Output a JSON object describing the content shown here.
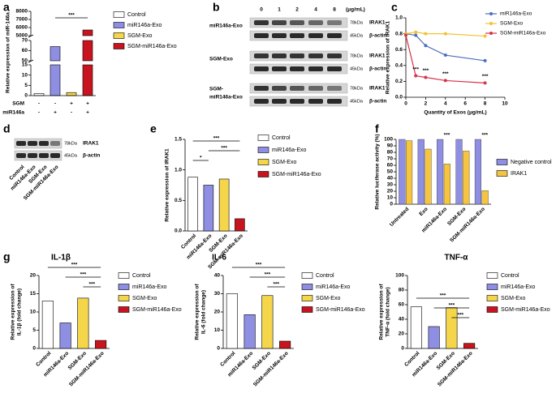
{
  "panel_labels": [
    "a",
    "b",
    "c",
    "d",
    "e",
    "f",
    "g"
  ],
  "blots": {
    "b": {
      "doses": [
        "0",
        "1",
        "2",
        "4",
        "8"
      ],
      "unit": "(μg/mL)",
      "groups": [
        [
          "miR146a-Exo"
        ],
        [
          "SGM-Exo"
        ],
        [
          "SGM-",
          "miR146a-Exo"
        ]
      ],
      "bands": [
        {
          "size": "78kDa",
          "name": "IRAK1"
        },
        {
          "size": "45kDa",
          "name": "β-actin"
        }
      ]
    },
    "d": {
      "bands": [
        {
          "size": "78kDa",
          "name": "IRAK1"
        },
        {
          "size": "45kDa",
          "name": "β-actin"
        }
      ],
      "lanes": [
        "Control",
        "miR146a-Exo",
        "SGM-Exo",
        "SGM-miR146a-Exo"
      ]
    }
  },
  "chart_data": [
    {
      "type": "broken-bar",
      "y_label": "Relative expression of miR-146a",
      "categories": [
        "Control",
        "miR146a-Exo",
        "SGM-Exo",
        "SGM-miR146a-Exo"
      ],
      "values": [
        1,
        64,
        1.5,
        5700
      ],
      "colors": [
        "#ffffff",
        "#8e8fe3",
        "#f5d64b",
        "#c8141e"
      ],
      "y_segments": [
        {
          "ylim": [
            0,
            15
          ],
          "yticks": [
            0,
            5,
            10,
            15
          ]
        },
        {
          "ylim": [
            50,
            70
          ],
          "yticks": [
            50,
            60,
            70
          ]
        },
        {
          "ylim": [
            5000,
            8000
          ],
          "yticks": [
            5000,
            6000,
            7000,
            8000
          ]
        }
      ],
      "annotations": [
        "***"
      ],
      "rows": [
        {
          "label": "SGM",
          "marks": [
            "-",
            "-",
            "+",
            "+"
          ]
        },
        {
          "label": "miR146a",
          "marks": [
            "-",
            "+",
            "-",
            "+"
          ]
        }
      ]
    },
    {
      "type": "line",
      "x_label": "Quantity of Exos (μg/mL)",
      "y_label": "Relative expression of IRAK1",
      "x": [
        0,
        1,
        2,
        4,
        8
      ],
      "xlim": [
        0,
        10
      ],
      "xticks": [
        0,
        2,
        4,
        6,
        8,
        10
      ],
      "ylim": [
        0,
        1
      ],
      "yticks": [
        {
          "value": 0,
          "label": "0.0"
        },
        {
          "value": 0.2,
          "label": "0.2"
        },
        {
          "value": 0.4,
          "label": "0.4"
        },
        {
          "value": 0.6,
          "label": "0.6"
        },
        {
          "value": 0.8,
          "label": "0.8"
        },
        {
          "value": 1,
          "label": "1.0"
        }
      ],
      "series": [
        {
          "name": "miR146a-Exo",
          "color": "#4a6fc0",
          "values": [
            0.8,
            0.78,
            0.65,
            0.53,
            0.46
          ]
        },
        {
          "name": "SGM-Exo",
          "color": "#f2c230",
          "values": [
            0.8,
            0.82,
            0.8,
            0.8,
            0.77
          ]
        },
        {
          "name": "SGM-miR146a-Exo",
          "color": "#d6344a",
          "values": [
            0.78,
            0.27,
            0.25,
            0.21,
            0.18
          ]
        }
      ],
      "annotations": [
        "***",
        "***",
        "***",
        "***"
      ]
    },
    {
      "type": "bar",
      "y_label": "Relative expression of IRAK1",
      "categories": [
        "Control",
        "miR146a-Exo",
        "SGM-Exo",
        "SGM-miR146a-Exo"
      ],
      "values": [
        0.88,
        0.75,
        0.85,
        0.2
      ],
      "colors": [
        "#ffffff",
        "#8e8fe3",
        "#f5d64b",
        "#c8141e"
      ],
      "ylim": [
        0,
        1.5
      ],
      "yticks": [
        {
          "value": 0,
          "label": "0.0"
        },
        {
          "value": 0.5,
          "label": "0.5"
        },
        {
          "value": 1,
          "label": "1.0"
        },
        {
          "value": 1.5,
          "label": "1.5"
        }
      ],
      "annotations": [
        "***",
        "***",
        "*"
      ]
    },
    {
      "type": "bar",
      "y_label": "Relative luciferase activity (%)",
      "categories": [
        "Untreated",
        "Exo",
        "miR146a-Exo",
        "SGM-Exo",
        "SGM-miR146a-Exo"
      ],
      "series": [
        {
          "name": "Negative control",
          "color": "#8e8fe3",
          "values": [
            100,
            100,
            100,
            100,
            100
          ]
        },
        {
          "name": "IRAK1",
          "color": "#f5c542",
          "values": [
            98,
            85,
            62,
            82,
            21
          ]
        }
      ],
      "ylim": [
        0,
        100
      ],
      "yticks": [
        0,
        10,
        20,
        30,
        40,
        50,
        60,
        70,
        80,
        90,
        100
      ],
      "annotations": [
        "***",
        "***"
      ]
    },
    {
      "type": "bar",
      "title": "IL-1β",
      "y_label": [
        "Relative expression of",
        "IL-1β (fold change)"
      ],
      "categories": [
        "Control",
        "miR146a-Exo",
        "SGM-Exo",
        "SGM-miR146a-Exo"
      ],
      "values": [
        13,
        7,
        13.8,
        2.2
      ],
      "colors": [
        "#ffffff",
        "#8e8fe3",
        "#f5d64b",
        "#c8141e"
      ],
      "ylim": [
        0,
        20
      ],
      "yticks": [
        0,
        5,
        10,
        15,
        20
      ],
      "annotations": [
        "***",
        "***",
        "***"
      ]
    },
    {
      "type": "bar",
      "title": "IL-6",
      "y_label": [
        "Relative expression of",
        "IL-6 (fold change)"
      ],
      "categories": [
        "Control",
        "miR146a-Exo",
        "SGM-Exo",
        "SGM-miR146a-Exo"
      ],
      "values": [
        30,
        18.5,
        29,
        4
      ],
      "colors": [
        "#ffffff",
        "#8e8fe3",
        "#f5d64b",
        "#c8141e"
      ],
      "ylim": [
        0,
        40
      ],
      "yticks": [
        0,
        10,
        20,
        30,
        40
      ],
      "annotations": [
        "***",
        "***",
        "***"
      ]
    },
    {
      "type": "bar",
      "title": "TNF-α",
      "y_label": [
        "Relative expression of",
        "TNF-α (fold change)"
      ],
      "categories": [
        "Control",
        "miR146a-Exo",
        "SGM-Exo",
        "SGM-miR146a-Exo"
      ],
      "values": [
        57,
        30,
        56,
        7
      ],
      "colors": [
        "#ffffff",
        "#8e8fe3",
        "#f5d64b",
        "#c8141e"
      ],
      "ylim": [
        0,
        100
      ],
      "yticks": [
        0,
        20,
        40,
        60,
        80,
        100
      ],
      "annotations": [
        "***",
        "***",
        "***"
      ]
    }
  ]
}
